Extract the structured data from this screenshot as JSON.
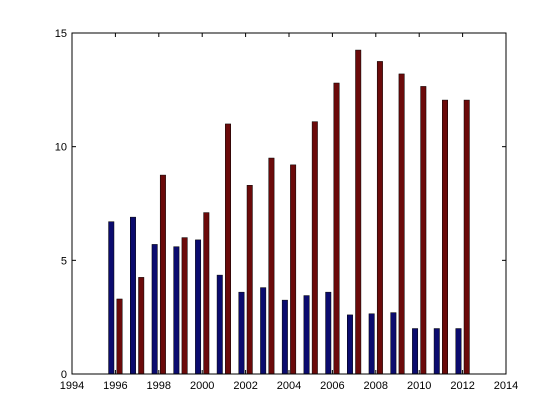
{
  "chart_data": {
    "type": "bar",
    "x": [
      1996,
      1997,
      1998,
      1999,
      2000,
      2001,
      2002,
      2003,
      2004,
      2005,
      2006,
      2007,
      2008,
      2009,
      2010,
      2011,
      2012
    ],
    "series": [
      {
        "color": "#0b0b6e",
        "values": [
          6.7,
          6.9,
          5.7,
          5.6,
          5.9,
          4.35,
          3.6,
          3.8,
          3.25,
          3.45,
          3.6,
          2.6,
          2.65,
          2.7,
          2.0,
          2.0,
          2.0
        ]
      },
      {
        "color": "#6b0a0a",
        "values": [
          3.3,
          4.25,
          8.75,
          6.0,
          7.1,
          11.0,
          8.3,
          9.5,
          9.2,
          11.1,
          12.8,
          14.25,
          13.75,
          13.2,
          12.65,
          12.05,
          12.05
        ]
      }
    ],
    "title": "",
    "xlabel": "",
    "ylabel": "",
    "xlim": [
      1994,
      2014
    ],
    "ylim": [
      0,
      15
    ],
    "xticks": [
      1994,
      1996,
      1998,
      2000,
      2002,
      2004,
      2006,
      2008,
      2010,
      2012,
      2014
    ],
    "yticks": [
      0,
      5,
      10,
      15
    ],
    "grid": false,
    "legend": false
  }
}
